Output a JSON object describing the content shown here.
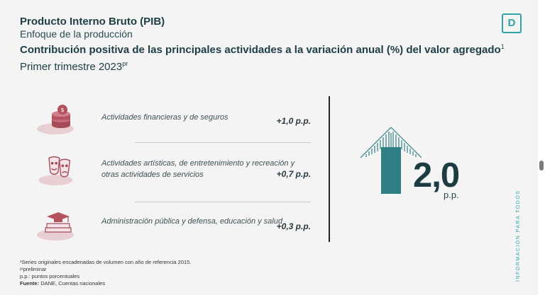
{
  "header": {
    "title": "Producto Interno Bruto (PIB)",
    "subtitle": "Enfoque de la producción",
    "heading": "Contribución positiva de las principales actividades a la variación anual (%) del valor agregado",
    "heading_sup": "1",
    "period": "Primer trimestre 2023",
    "period_sup": "pr"
  },
  "logo": {
    "letter": "D",
    "icon": "dane-logo-icon"
  },
  "activities": [
    {
      "label": "Actividades financieras y de seguros",
      "value": "+1,0 p.p.",
      "icon": "coins-icon"
    },
    {
      "label": "Actividades artísticas, de entretenimiento y recreación y otras actividades de servicios",
      "value": "+0,7 p.p.",
      "icon": "theater-masks-icon"
    },
    {
      "label": "Administración pública y defensa, educación y salud",
      "value": "+0,3 p.p.",
      "icon": "graduation-books-icon"
    }
  ],
  "total": {
    "value": "2,0",
    "unit": "p.p.",
    "icon": "up-arrow-icon"
  },
  "slogan": "INFORMACIÓN PARA TODOS",
  "footnotes": [
    "¹Series originales encadenadas de volumen con año de referencia 2015.",
    "ᵖʳpreliminar",
    "p.p.: puntos porcentuales"
  ],
  "source": {
    "label": "Fuente:",
    "text": "DANE, Cuentas nacionales"
  },
  "colors": {
    "accent": "#2ea3a8",
    "arrow": "#2e7f86",
    "icon": "#b5525f",
    "background": "#f4f4f4"
  }
}
